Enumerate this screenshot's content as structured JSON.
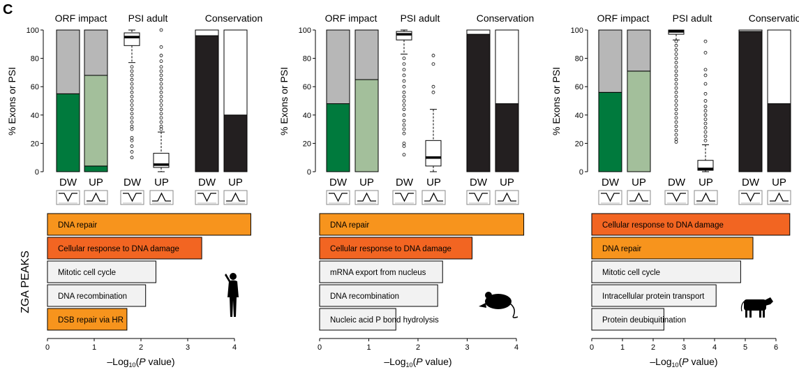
{
  "figure": {
    "panel_letter": "C",
    "y_axis_label": "% Exons or PSI",
    "zga_label": "ZGA PEAKS",
    "subpanel_titles": [
      "ORF impact",
      "PSI adult",
      "Conservation"
    ],
    "group_labels": [
      "DW",
      "UP"
    ],
    "x_axis_label": {
      "prefix": "–Log",
      "sub": "10",
      "open": "(",
      "italic": "P",
      "rest": " value)"
    }
  },
  "chart_data": [
    {
      "type": "bar",
      "panel": "human",
      "species_icon": "human-silhouette-icon",
      "orf_impact": {
        "ylim": [
          0,
          100
        ],
        "yticks": [
          0,
          20,
          40,
          60,
          80,
          100
        ],
        "categories": [
          "DW",
          "UP"
        ],
        "series": [
          {
            "color": "#007a3d",
            "values": [
              55,
              4
            ]
          },
          {
            "color": "#a3bf9b",
            "values": [
              0,
              64
            ]
          },
          {
            "color": "#b7b7b7",
            "values": [
              45,
              32
            ]
          }
        ]
      },
      "psi_adult": {
        "type": "boxplot",
        "categories": [
          "DW",
          "UP"
        ],
        "boxes": [
          {
            "whisker_low": 77,
            "q1": 89,
            "median": 95,
            "q3": 98,
            "whisker_high": 100,
            "outliers": [
              10,
              14,
              18,
              22,
              24,
              30,
              32,
              35,
              38,
              41,
              44,
              47,
              50,
              53,
              56,
              59,
              62,
              65,
              68,
              71,
              74
            ]
          },
          {
            "whisker_low": 0,
            "q1": 3,
            "median": 5,
            "q3": 13,
            "whisker_high": 28,
            "outliers": [
              30,
              32,
              35,
              38,
              41,
              44,
              47,
              50,
              53,
              56,
              59,
              62,
              65,
              68,
              71,
              74,
              78,
              82,
              88,
              100
            ]
          }
        ]
      },
      "conservation": {
        "categories": [
          "DW",
          "UP"
        ],
        "series": [
          {
            "color": "#231f20",
            "values": [
              96,
              40
            ]
          },
          {
            "color": "#ffffff",
            "values": [
              4,
              60
            ]
          }
        ]
      },
      "enrichment": {
        "type": "bar",
        "orientation": "horizontal",
        "xlim": [
          0,
          4.5
        ],
        "xticks": [
          0,
          1,
          2,
          3,
          4
        ],
        "categories": [
          "DNA repair",
          "Cellular response to DNA damage",
          "Mitotic cell cycle",
          "DNA recombination",
          "DSB repair via HR"
        ],
        "values": [
          4.35,
          3.3,
          2.32,
          2.1,
          1.7
        ],
        "colors": [
          "#f7941d",
          "#f26522",
          "#f2f2f2",
          "#f2f2f2",
          "#f7941d"
        ]
      }
    },
    {
      "type": "bar",
      "panel": "mouse",
      "species_icon": "mouse-silhouette-icon",
      "orf_impact": {
        "ylim": [
          0,
          100
        ],
        "yticks": [
          0,
          20,
          40,
          60,
          80,
          100
        ],
        "categories": [
          "DW",
          "UP"
        ],
        "series": [
          {
            "color": "#007a3d",
            "values": [
              48,
              0
            ]
          },
          {
            "color": "#a3bf9b",
            "values": [
              0,
              65
            ]
          },
          {
            "color": "#b7b7b7",
            "values": [
              52,
              35
            ]
          }
        ]
      },
      "psi_adult": {
        "type": "boxplot",
        "categories": [
          "DW",
          "UP"
        ],
        "boxes": [
          {
            "whisker_low": 83,
            "q1": 93,
            "median": 97,
            "q3": 99,
            "whisker_high": 100,
            "outliers": [
              12,
              18,
              20,
              27,
              30,
              33,
              36,
              40,
              44,
              47,
              50,
              53,
              56,
              60,
              64,
              68,
              72,
              76,
              80
            ]
          },
          {
            "whisker_low": 0,
            "q1": 4,
            "median": 10,
            "q3": 22,
            "whisker_high": 44,
            "outliers": [
              56,
              60,
              76,
              82
            ]
          }
        ]
      },
      "conservation": {
        "categories": [
          "DW",
          "UP"
        ],
        "series": [
          {
            "color": "#231f20",
            "values": [
              97,
              48
            ]
          },
          {
            "color": "#ffffff",
            "values": [
              3,
              52
            ]
          }
        ]
      },
      "enrichment": {
        "type": "bar",
        "orientation": "horizontal",
        "xlim": [
          0,
          4.2
        ],
        "xticks": [
          0,
          1,
          2,
          3,
          4
        ],
        "categories": [
          "DNA repair",
          "Cellular response to DNA damage",
          "mRNA export from nucleus",
          "DNA recombination",
          "Nucleic acid P bond hydrolysis"
        ],
        "values": [
          4.15,
          3.1,
          2.5,
          2.4,
          1.55
        ],
        "colors": [
          "#f7941d",
          "#f26522",
          "#f2f2f2",
          "#f2f2f2",
          "#f2f2f2"
        ]
      }
    },
    {
      "type": "bar",
      "panel": "cow",
      "species_icon": "cow-silhouette-icon",
      "orf_impact": {
        "ylim": [
          0,
          100
        ],
        "yticks": [
          0,
          20,
          40,
          60,
          80,
          100
        ],
        "categories": [
          "DW",
          "UP"
        ],
        "series": [
          {
            "color": "#007a3d",
            "values": [
              56,
              0
            ]
          },
          {
            "color": "#a3bf9b",
            "values": [
              0,
              71
            ]
          },
          {
            "color": "#b7b7b7",
            "values": [
              44,
              29
            ]
          }
        ]
      },
      "psi_adult": {
        "type": "boxplot",
        "categories": [
          "DW",
          "UP"
        ],
        "boxes": [
          {
            "whisker_low": 93,
            "q1": 97,
            "median": 99,
            "q3": 100,
            "whisker_high": 100,
            "outliers": [
              21,
              23,
              26,
              29,
              32,
              35,
              38,
              41,
              44,
              47,
              50,
              53,
              56,
              59,
              62,
              65,
              68,
              71,
              74,
              77,
              80,
              83,
              86,
              89,
              92
            ]
          },
          {
            "whisker_low": 0,
            "q1": 1,
            "median": 2,
            "q3": 8,
            "whisker_high": 19,
            "outliers": [
              22,
              25,
              28,
              31,
              34,
              37,
              40,
              43,
              46,
              50,
              55,
              62,
              68,
              72,
              84,
              92
            ]
          }
        ]
      },
      "conservation": {
        "categories": [
          "DW",
          "UP"
        ],
        "series": [
          {
            "color": "#231f20",
            "values": [
              99,
              48
            ]
          },
          {
            "color": "#ffffff",
            "values": [
              1,
              52
            ]
          }
        ]
      },
      "enrichment": {
        "type": "bar",
        "orientation": "horizontal",
        "xlim": [
          0,
          6.3
        ],
        "xticks": [
          0,
          1,
          2,
          3,
          4,
          5,
          6
        ],
        "categories": [
          "Cellular response to DNA damage",
          "DNA repair",
          "Mitotic cell cycle",
          "Intracellular protein transport",
          "Protein deubiquitination"
        ],
        "values": [
          6.45,
          5.25,
          4.85,
          4.05,
          2.35
        ],
        "colors": [
          "#f26522",
          "#f7941d",
          "#f2f2f2",
          "#f2f2f2",
          "#f2f2f2"
        ]
      }
    }
  ]
}
